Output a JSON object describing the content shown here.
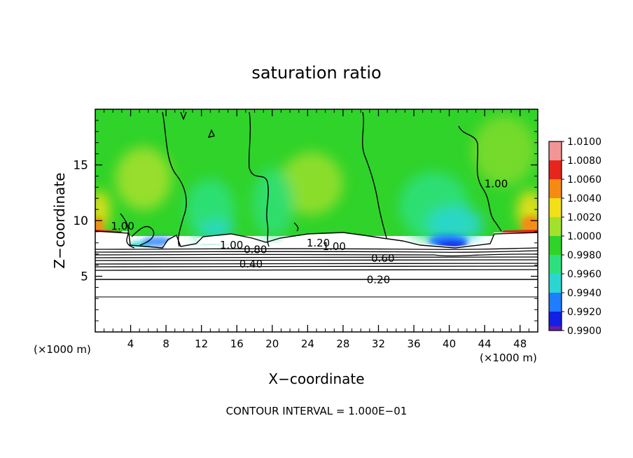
{
  "chart_data": {
    "type": "heatmap",
    "title": "saturation ratio",
    "xlabel": "X−coordinate",
    "ylabel": "Z−coordinate",
    "x_units": "(×1000 m)",
    "y_units": "(×1000 m)",
    "xlim": [
      0,
      50
    ],
    "ylim": [
      0,
      20
    ],
    "x_ticks": [
      4,
      8,
      12,
      16,
      20,
      24,
      28,
      32,
      36,
      40,
      44,
      48
    ],
    "y_ticks": [
      5,
      10,
      15
    ],
    "grid": false,
    "colorbar": {
      "position": "right",
      "levels": [
        "1.0100",
        "1.0080",
        "1.0060",
        "1.0040",
        "1.0020",
        "1.0000",
        "0.9980",
        "0.9960",
        "0.9940",
        "0.9920",
        "0.9900"
      ],
      "colors": [
        "#f29595",
        "#e6261c",
        "#f58b12",
        "#f0e018",
        "#a3e02c",
        "#30d32a",
        "#2ee07c",
        "#2bd6d2",
        "#1f7dff",
        "#1220e6",
        "#6a1fa8"
      ]
    },
    "contour_labels": [
      {
        "text": "1.00",
        "x": 45.3,
        "y": 13.1
      },
      {
        "text": "1.00",
        "x": 3.1,
        "y": 9.3
      },
      {
        "text": "1.00",
        "x": 15.4,
        "y": 7.6
      },
      {
        "text": "0.80",
        "x": 18.1,
        "y": 7.2
      },
      {
        "text": "1.20",
        "x": 25.2,
        "y": 7.8
      },
      {
        "text": "1.00",
        "x": 27.0,
        "y": 7.5
      },
      {
        "text": "0.60",
        "x": 32.5,
        "y": 6.4
      },
      {
        "text": "0.40",
        "x": 17.6,
        "y": 5.9
      },
      {
        "text": "0.20",
        "x": 32.0,
        "y": 4.5
      }
    ],
    "footer": "CONTOUR INTERVAL = 1.000E−01"
  }
}
